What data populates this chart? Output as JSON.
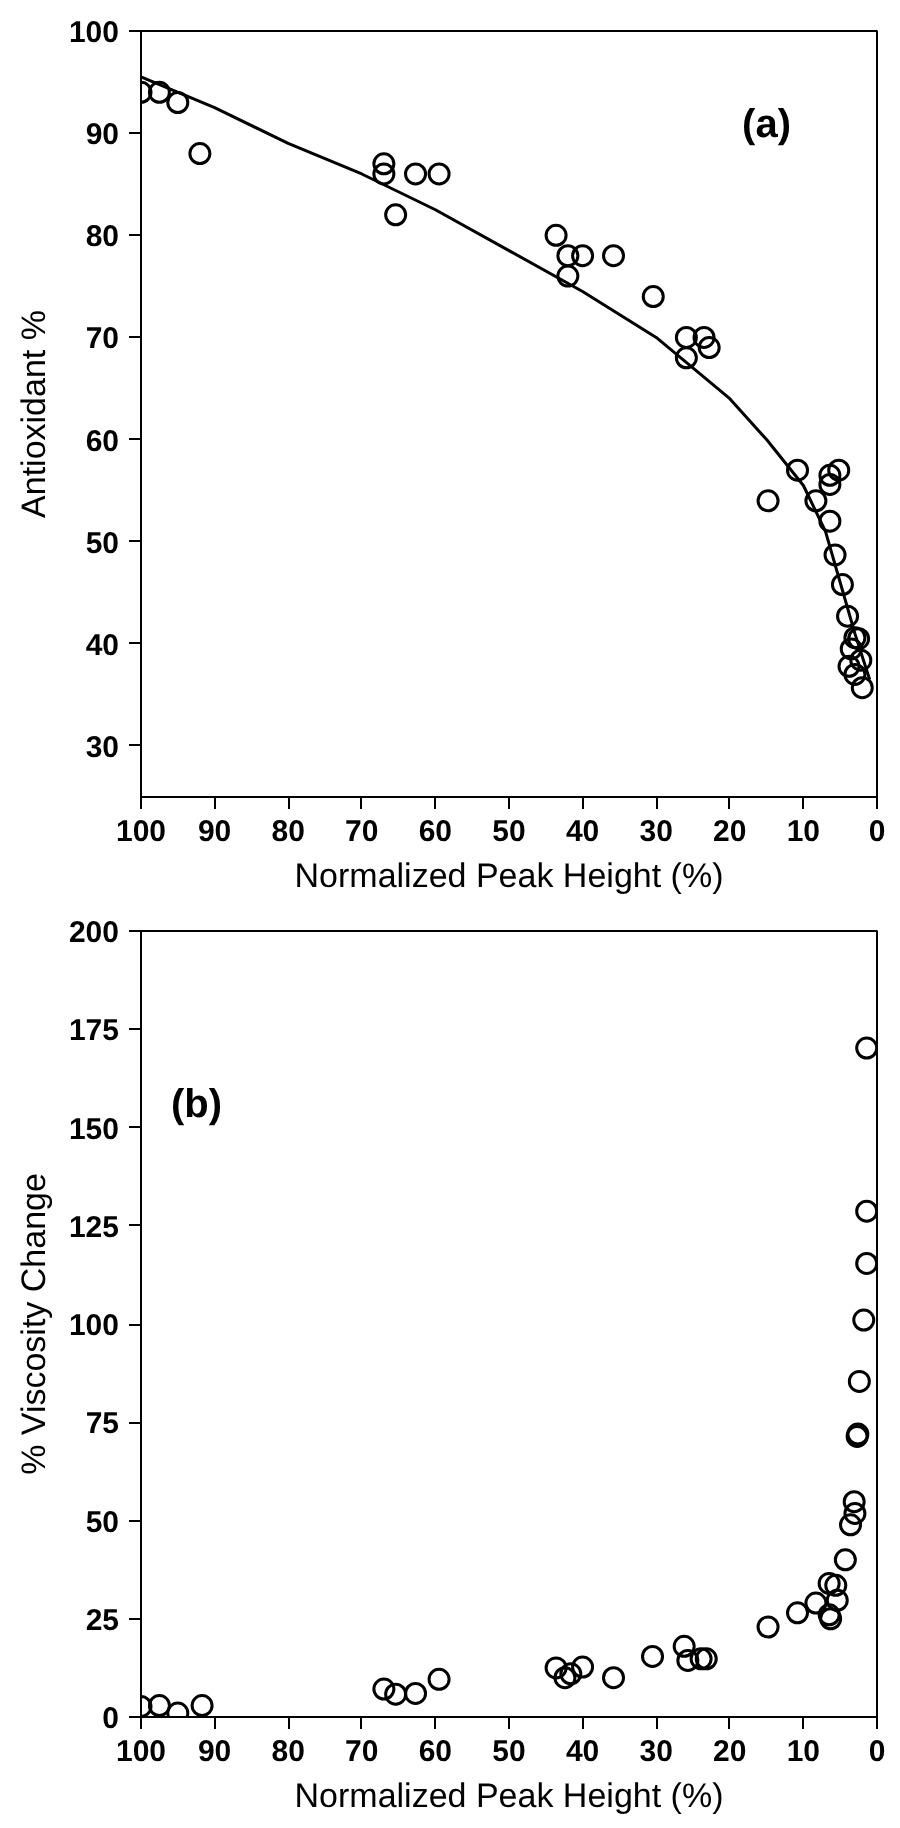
{
  "chart_data": [
    {
      "type": "scatter",
      "xlabel": "Normalized Peak Height (%)",
      "ylabel": "Antioxidant %",
      "annotations": [
        "(a)"
      ],
      "marker": "circle",
      "grid": false,
      "xlim": [
        100,
        0
      ],
      "xticks": [
        100,
        90,
        80,
        70,
        60,
        50,
        40,
        30,
        20,
        10,
        0
      ],
      "ylim": [
        25,
        100
      ],
      "yticks": [
        30,
        40,
        50,
        60,
        70,
        80,
        90,
        100
      ],
      "series": [
        {
          "color": "#000000",
          "x": [
            100,
            97.5,
            95,
            92,
            67,
            67,
            65.4,
            62.7,
            59.5,
            43.6,
            42,
            42,
            40,
            35.8,
            30.4,
            25.9,
            25.9,
            23.5,
            22.8,
            14.8,
            10.8,
            8.3,
            6.4,
            6.4,
            5.2,
            6.4,
            5.7,
            4.7,
            4,
            3,
            3.5,
            2.5,
            3.8,
            3,
            2,
            2.2
          ],
          "values": [
            94,
            94,
            93,
            88,
            87,
            86,
            82,
            86,
            86,
            80,
            78,
            76,
            78,
            78,
            74,
            70,
            68,
            70,
            69,
            54,
            57,
            54,
            55.6,
            56.5,
            57,
            52,
            48.7,
            45.8,
            42.7,
            40.6,
            39.5,
            40.5,
            37.8,
            37,
            35.7,
            38.4
          ]
        },
        {
          "type": "line",
          "color": "#000000",
          "marker": "none",
          "x": [
            100,
            90,
            80,
            70,
            60,
            50,
            40,
            30,
            20,
            15,
            10,
            7,
            5,
            3,
            1
          ],
          "values": [
            95.5,
            92.5,
            89,
            86,
            82.5,
            78.5,
            74.5,
            70,
            64,
            60,
            55.5,
            51,
            46,
            41,
            36.5
          ]
        }
      ]
    },
    {
      "type": "scatter",
      "xlabel": "Normalized Peak Height (%)",
      "ylabel": "% Viscosity Change",
      "annotations": [
        "(b)"
      ],
      "marker": "circle",
      "grid": false,
      "xlim": [
        100,
        0
      ],
      "xticks": [
        100,
        90,
        80,
        70,
        60,
        50,
        40,
        30,
        20,
        10,
        0
      ],
      "ylim": [
        0,
        200
      ],
      "yticks": [
        0,
        25,
        50,
        75,
        100,
        125,
        150,
        175,
        200
      ],
      "series": [
        {
          "color": "#000000",
          "x": [
            100,
            97.5,
            95,
            91.7,
            67,
            65.4,
            62.7,
            59.5,
            43.6,
            42.4,
            41.6,
            40,
            35.8,
            30.5,
            26.2,
            25.7,
            23.9,
            23.2,
            14.8,
            10.8,
            8.3,
            6.5,
            6.5,
            6.3,
            5.4,
            5.6,
            4.3,
            3.6,
            3.1,
            3,
            2.7,
            2.6,
            2.4,
            1.8,
            1.4,
            1.4,
            1.4
          ],
          "values": [
            2.7,
            2.9,
            1,
            2.9,
            7.1,
            5.8,
            6,
            9.6,
            12.5,
            10,
            11,
            12.7,
            10,
            15.4,
            18,
            14.4,
            14.8,
            14.8,
            22.9,
            26.5,
            29,
            34,
            26,
            25,
            29.7,
            33.5,
            40,
            48.9,
            54.8,
            51.8,
            71.4,
            72,
            85.4,
            101,
            115.4,
            128.7,
            170.2
          ]
        }
      ]
    }
  ]
}
